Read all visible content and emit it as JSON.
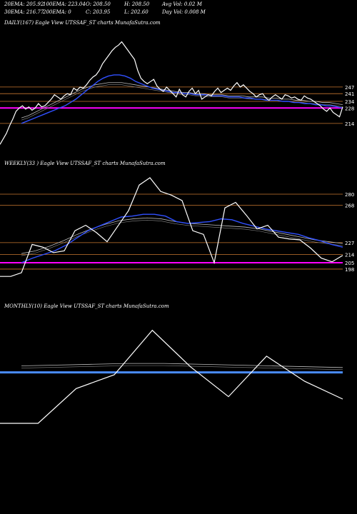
{
  "header": {
    "row1": [
      "20EMA: 205.92",
      "100EMA: 223.04",
      "O: 208.50",
      "H: 208.50",
      "Avg Vol: 0.02  M"
    ],
    "row2": [
      "30EMA: 216.77",
      "200EMA: 0",
      "C: 203.95",
      "L: 202.60",
      "Day Vol: 0.008  M"
    ]
  },
  "colors": {
    "background": "#000000",
    "price": "#ffffff",
    "ema_blue": "#3050ff",
    "level_orange": "#c87830",
    "level_magenta": "#ff00ff",
    "bar_blue": "#4a8cff"
  },
  "chart_data": [
    {
      "type": "line",
      "caption": "DAILY(167) Eagle  View  UTSSAF_ST charts MunafaSutra.com",
      "levels": [
        {
          "label": "247",
          "value": 247
        },
        {
          "label": "241",
          "value": 241
        },
        {
          "label": "234",
          "value": 234
        },
        {
          "label": "228",
          "value": 228
        },
        {
          "label": "214",
          "value": 214
        }
      ],
      "ylim": [
        190,
        300
      ],
      "price": [
        195,
        200,
        205,
        212,
        218,
        225,
        228,
        230,
        227,
        229,
        226,
        228,
        232,
        229,
        230,
        233,
        236,
        240,
        238,
        236,
        239,
        241,
        240,
        246,
        244,
        247,
        246,
        249,
        253,
        256,
        258,
        262,
        268,
        272,
        276,
        280,
        283,
        285,
        288,
        284,
        280,
        276,
        272,
        262,
        255,
        252,
        250,
        252,
        254,
        248,
        245,
        243,
        247,
        244,
        241,
        238,
        245,
        240,
        238,
        243,
        246,
        241,
        244,
        236,
        238,
        240,
        239,
        243,
        246,
        242,
        244,
        246,
        244,
        248,
        251,
        247,
        249,
        246,
        243,
        241,
        238,
        240,
        241,
        237,
        235,
        238,
        240,
        238,
        236,
        240,
        239,
        237,
        238,
        236,
        235,
        239,
        237,
        236,
        234,
        232,
        230,
        227,
        225,
        228,
        224,
        222,
        220,
        229
      ],
      "ema_blue": [
        214,
        216,
        218,
        220,
        222,
        224,
        226,
        228,
        230,
        233,
        236,
        240,
        244,
        248,
        252,
        255,
        257,
        258,
        258,
        257,
        255,
        252,
        250,
        248,
        246,
        245,
        244,
        243,
        242,
        242,
        241,
        241,
        240,
        240,
        240,
        239,
        239,
        239,
        238,
        238,
        238,
        237,
        237,
        236,
        236,
        235,
        235,
        235,
        234,
        234,
        233,
        233,
        232,
        232,
        231,
        231,
        230,
        230,
        229,
        228
      ],
      "ema_slow": [
        219,
        221,
        224,
        227,
        230,
        233,
        236,
        239,
        242,
        245,
        247,
        249,
        250,
        251,
        251,
        251,
        250,
        249,
        248,
        247,
        246,
        245,
        244,
        243,
        242,
        242,
        241,
        241,
        240,
        240,
        240,
        239,
        239,
        239,
        238,
        238,
        238,
        237,
        237,
        236,
        236,
        235,
        235,
        234,
        234,
        233,
        233,
        232,
        231
      ]
    },
    {
      "type": "line",
      "caption": "WEEKLY(33                    ) Eagle  View  UTSSAF_ST charts MunafaSutra.com",
      "levels": [
        {
          "label": "280",
          "value": 280
        },
        {
          "label": "268",
          "value": 268
        },
        {
          "label": "227",
          "value": 227
        },
        {
          "label": "214",
          "value": 214
        },
        {
          "label": "205",
          "value": 205
        },
        {
          "label": "198",
          "value": 198
        }
      ],
      "ylim": [
        180,
        305
      ],
      "price": [
        190,
        190,
        194,
        225,
        222,
        216,
        218,
        240,
        246,
        238,
        228,
        245,
        262,
        290,
        298,
        283,
        279,
        273,
        240,
        236,
        205,
        265,
        271,
        257,
        242,
        246,
        233,
        231,
        230,
        221,
        210,
        206,
        213
      ],
      "ema_blue": [
        205,
        210,
        214,
        218,
        224,
        232,
        240,
        245,
        250,
        255,
        256,
        258,
        258,
        256,
        250,
        248,
        249,
        250,
        253,
        252,
        248,
        245,
        242,
        240,
        238,
        236,
        232,
        229,
        225,
        222
      ],
      "ema_slow": [
        215,
        218,
        223,
        229,
        236,
        242,
        247,
        251,
        253,
        254,
        253,
        250,
        248,
        247,
        246,
        245,
        244,
        242,
        239,
        236,
        233,
        230,
        228,
        226
      ]
    },
    {
      "type": "line",
      "caption": "MONTHLY(10) Eagle  View  UTSSAF_ST charts MunafaSutra.com",
      "levels": [],
      "ylim": [
        170,
        320
      ],
      "price": [
        185,
        185,
        228,
        245,
        300,
        255,
        218,
        268,
        237,
        215
      ],
      "ema_blue": [
        248,
        248,
        248,
        248,
        248,
        248,
        248,
        248,
        248,
        248
      ],
      "ema_slow": [
        256,
        257,
        258,
        259,
        259,
        258,
        257,
        256,
        255,
        254
      ]
    }
  ]
}
